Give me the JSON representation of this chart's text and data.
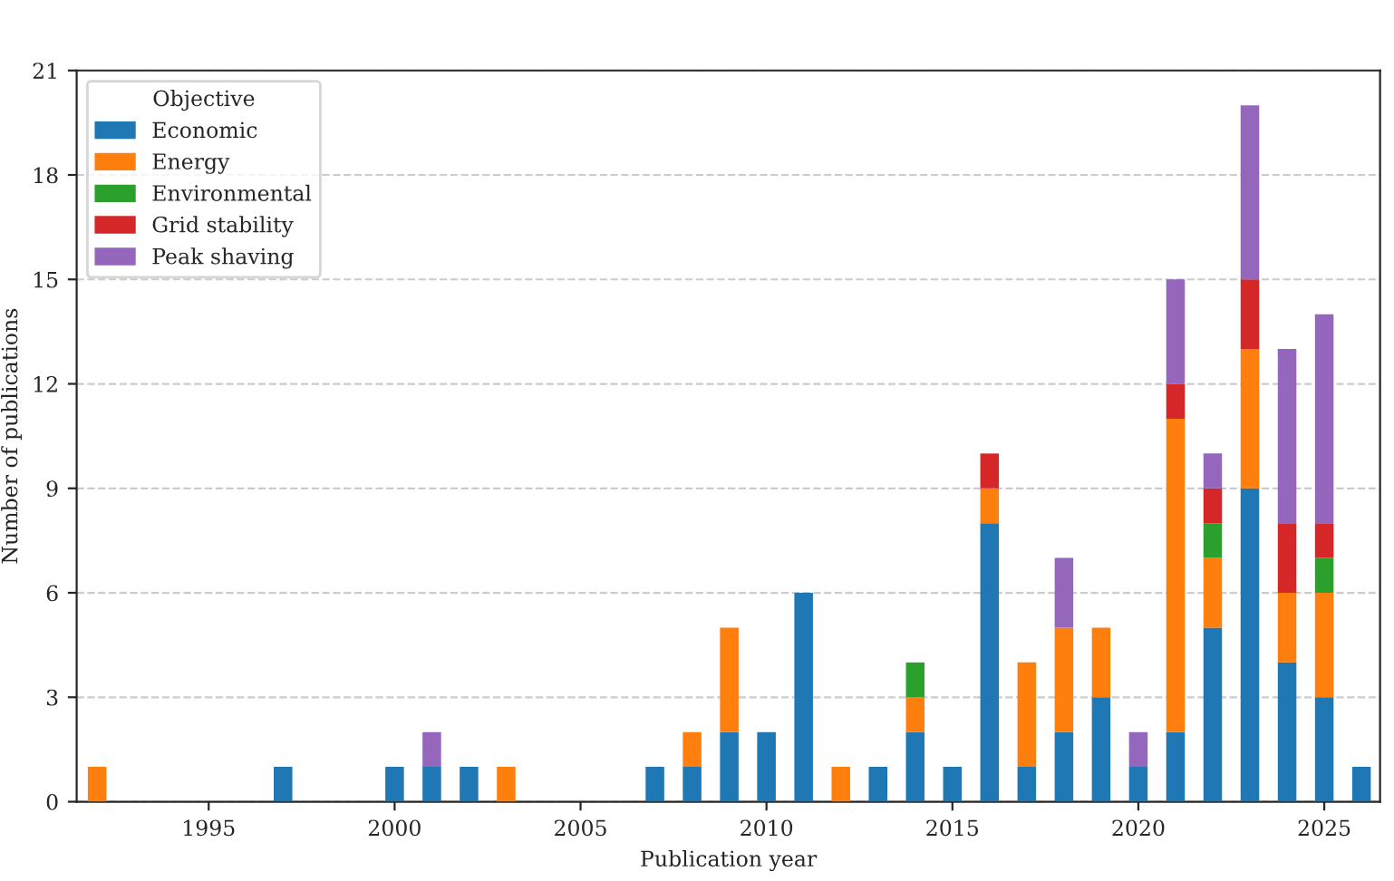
{
  "chart_data": {
    "type": "bar",
    "stacked": true,
    "xlabel": "Publication year",
    "ylabel": "Number of publications",
    "legend_title": "Objective",
    "legend": "top left",
    "grid": "y",
    "x": [
      1992,
      1997,
      2000,
      2001,
      2002,
      2003,
      2007,
      2008,
      2009,
      2010,
      2011,
      2012,
      2013,
      2014,
      2015,
      2016,
      2017,
      2018,
      2019,
      2020,
      2021,
      2022,
      2023,
      2024,
      2025,
      2026
    ],
    "series": [
      {
        "name": "Economic",
        "color": "#1f77b4",
        "values": [
          0,
          1,
          1,
          1,
          1,
          0,
          1,
          1,
          2,
          2,
          6,
          0,
          1,
          2,
          1,
          8,
          1,
          2,
          3,
          1,
          2,
          5,
          9,
          4,
          3,
          1
        ]
      },
      {
        "name": "Energy",
        "color": "#ff7f0e",
        "values": [
          1,
          0,
          0,
          0,
          0,
          1,
          0,
          1,
          3,
          0,
          0,
          1,
          0,
          1,
          0,
          1,
          3,
          3,
          2,
          0,
          9,
          2,
          4,
          2,
          3,
          0
        ]
      },
      {
        "name": "Environmental",
        "color": "#2ca02c",
        "values": [
          0,
          0,
          0,
          0,
          0,
          0,
          0,
          0,
          0,
          0,
          0,
          0,
          0,
          1,
          0,
          0,
          0,
          0,
          0,
          0,
          0,
          1,
          0,
          0,
          1,
          0
        ]
      },
      {
        "name": "Grid stability",
        "color": "#d62728",
        "values": [
          0,
          0,
          0,
          0,
          0,
          0,
          0,
          0,
          0,
          0,
          0,
          0,
          0,
          0,
          0,
          1,
          0,
          0,
          0,
          0,
          1,
          1,
          2,
          2,
          1,
          0
        ]
      },
      {
        "name": "Peak shaving",
        "color": "#9467bd",
        "values": [
          0,
          0,
          0,
          1,
          0,
          0,
          0,
          0,
          0,
          0,
          0,
          0,
          0,
          0,
          0,
          0,
          0,
          2,
          0,
          1,
          3,
          1,
          5,
          5,
          6,
          0
        ]
      }
    ],
    "xlim": [
      1991.45,
      2026.5
    ],
    "xticks": [
      1995,
      2000,
      2005,
      2010,
      2015,
      2020,
      2025
    ],
    "ylim": [
      0,
      21
    ],
    "yticks": [
      0,
      3,
      6,
      9,
      12,
      15,
      18,
      21
    ]
  }
}
